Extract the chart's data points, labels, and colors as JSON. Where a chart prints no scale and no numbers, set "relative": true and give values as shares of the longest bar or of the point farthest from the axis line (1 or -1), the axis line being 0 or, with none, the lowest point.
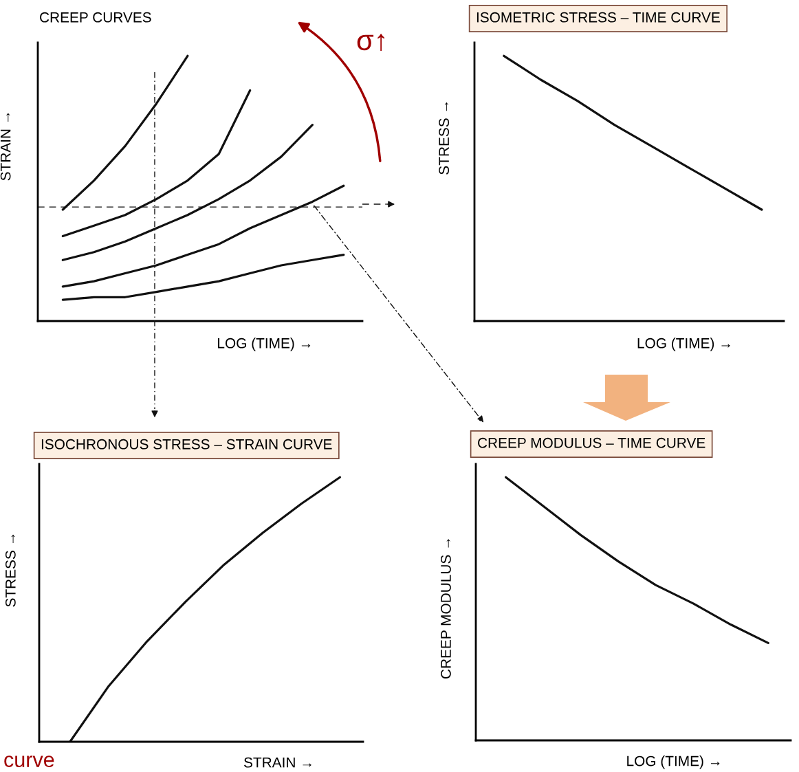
{
  "chart_data": [
    {
      "type": "line",
      "title": "CREEP CURVES",
      "xlabel": "LOG (TIME) →",
      "ylabel": "STRAIN →",
      "relative": true,
      "tick_labels": false,
      "line_style": "solid",
      "categories": [
        null,
        null,
        null,
        null,
        null,
        null,
        null,
        null,
        null,
        null
      ],
      "series": [
        {
          "color": "#111111",
          "values": [
            0.42,
            0.53,
            0.66,
            0.82,
            1.0,
            null,
            null,
            null,
            null,
            null
          ]
        },
        {
          "color": "#111111",
          "values": [
            0.32,
            0.36,
            0.4,
            0.46,
            0.53,
            0.63,
            0.87,
            null,
            null,
            null
          ]
        },
        {
          "color": "#111111",
          "values": [
            0.23,
            0.26,
            0.3,
            0.35,
            0.4,
            0.46,
            0.53,
            0.62,
            0.74,
            null
          ]
        },
        {
          "color": "#111111",
          "values": [
            0.13,
            0.15,
            0.18,
            0.21,
            0.25,
            0.29,
            0.35,
            0.4,
            0.45,
            0.51
          ]
        },
        {
          "color": "#111111",
          "values": [
            0.08,
            0.09,
            0.09,
            0.11,
            0.13,
            0.15,
            0.18,
            0.21,
            0.23,
            0.25
          ]
        }
      ],
      "ref_lines": [
        {
          "axis": "y",
          "value": 0.43,
          "color": "#111111",
          "line_style": "dashed"
        }
      ],
      "annotations": [
        "σ↑"
      ]
    },
    {
      "type": "line",
      "title": "ISOMETRIC STRESS – TIME CURVE",
      "xlabel": "LOG (TIME) →",
      "ylabel": "STRESS →",
      "relative": true,
      "tick_labels": false,
      "line_style": "solid",
      "categories": [
        null,
        null,
        null,
        null,
        null,
        null,
        null,
        null
      ],
      "series": [
        {
          "color": "#111111",
          "values": [
            1.0,
            0.91,
            0.83,
            0.74,
            0.66,
            0.58,
            0.5,
            0.42
          ]
        }
      ]
    },
    {
      "type": "line",
      "title": "ISOCHRONOUS STRESS – STRAIN CURVE",
      "xlabel": "STRAIN →",
      "ylabel": "STRESS →",
      "relative": true,
      "tick_labels": false,
      "line_style": "solid",
      "categories": [
        null,
        null,
        null,
        null,
        null,
        null,
        null,
        null
      ],
      "series": [
        {
          "color": "#111111",
          "values": [
            0.0,
            0.21,
            0.38,
            0.53,
            0.67,
            0.79,
            0.9,
            1.0
          ]
        }
      ],
      "annotations": [
        "curve"
      ]
    },
    {
      "type": "line",
      "title": "CREEP MODULUS – TIME CURVE",
      "xlabel": "LOG (TIME) →",
      "ylabel": "CREEP MODULUS →",
      "relative": true,
      "tick_labels": false,
      "line_style": "solid",
      "categories": [
        null,
        null,
        null,
        null,
        null,
        null,
        null,
        null
      ],
      "series": [
        {
          "color": "#111111",
          "values": [
            1.0,
            0.89,
            0.78,
            0.68,
            0.59,
            0.52,
            0.44,
            0.37
          ]
        }
      ]
    }
  ]
}
